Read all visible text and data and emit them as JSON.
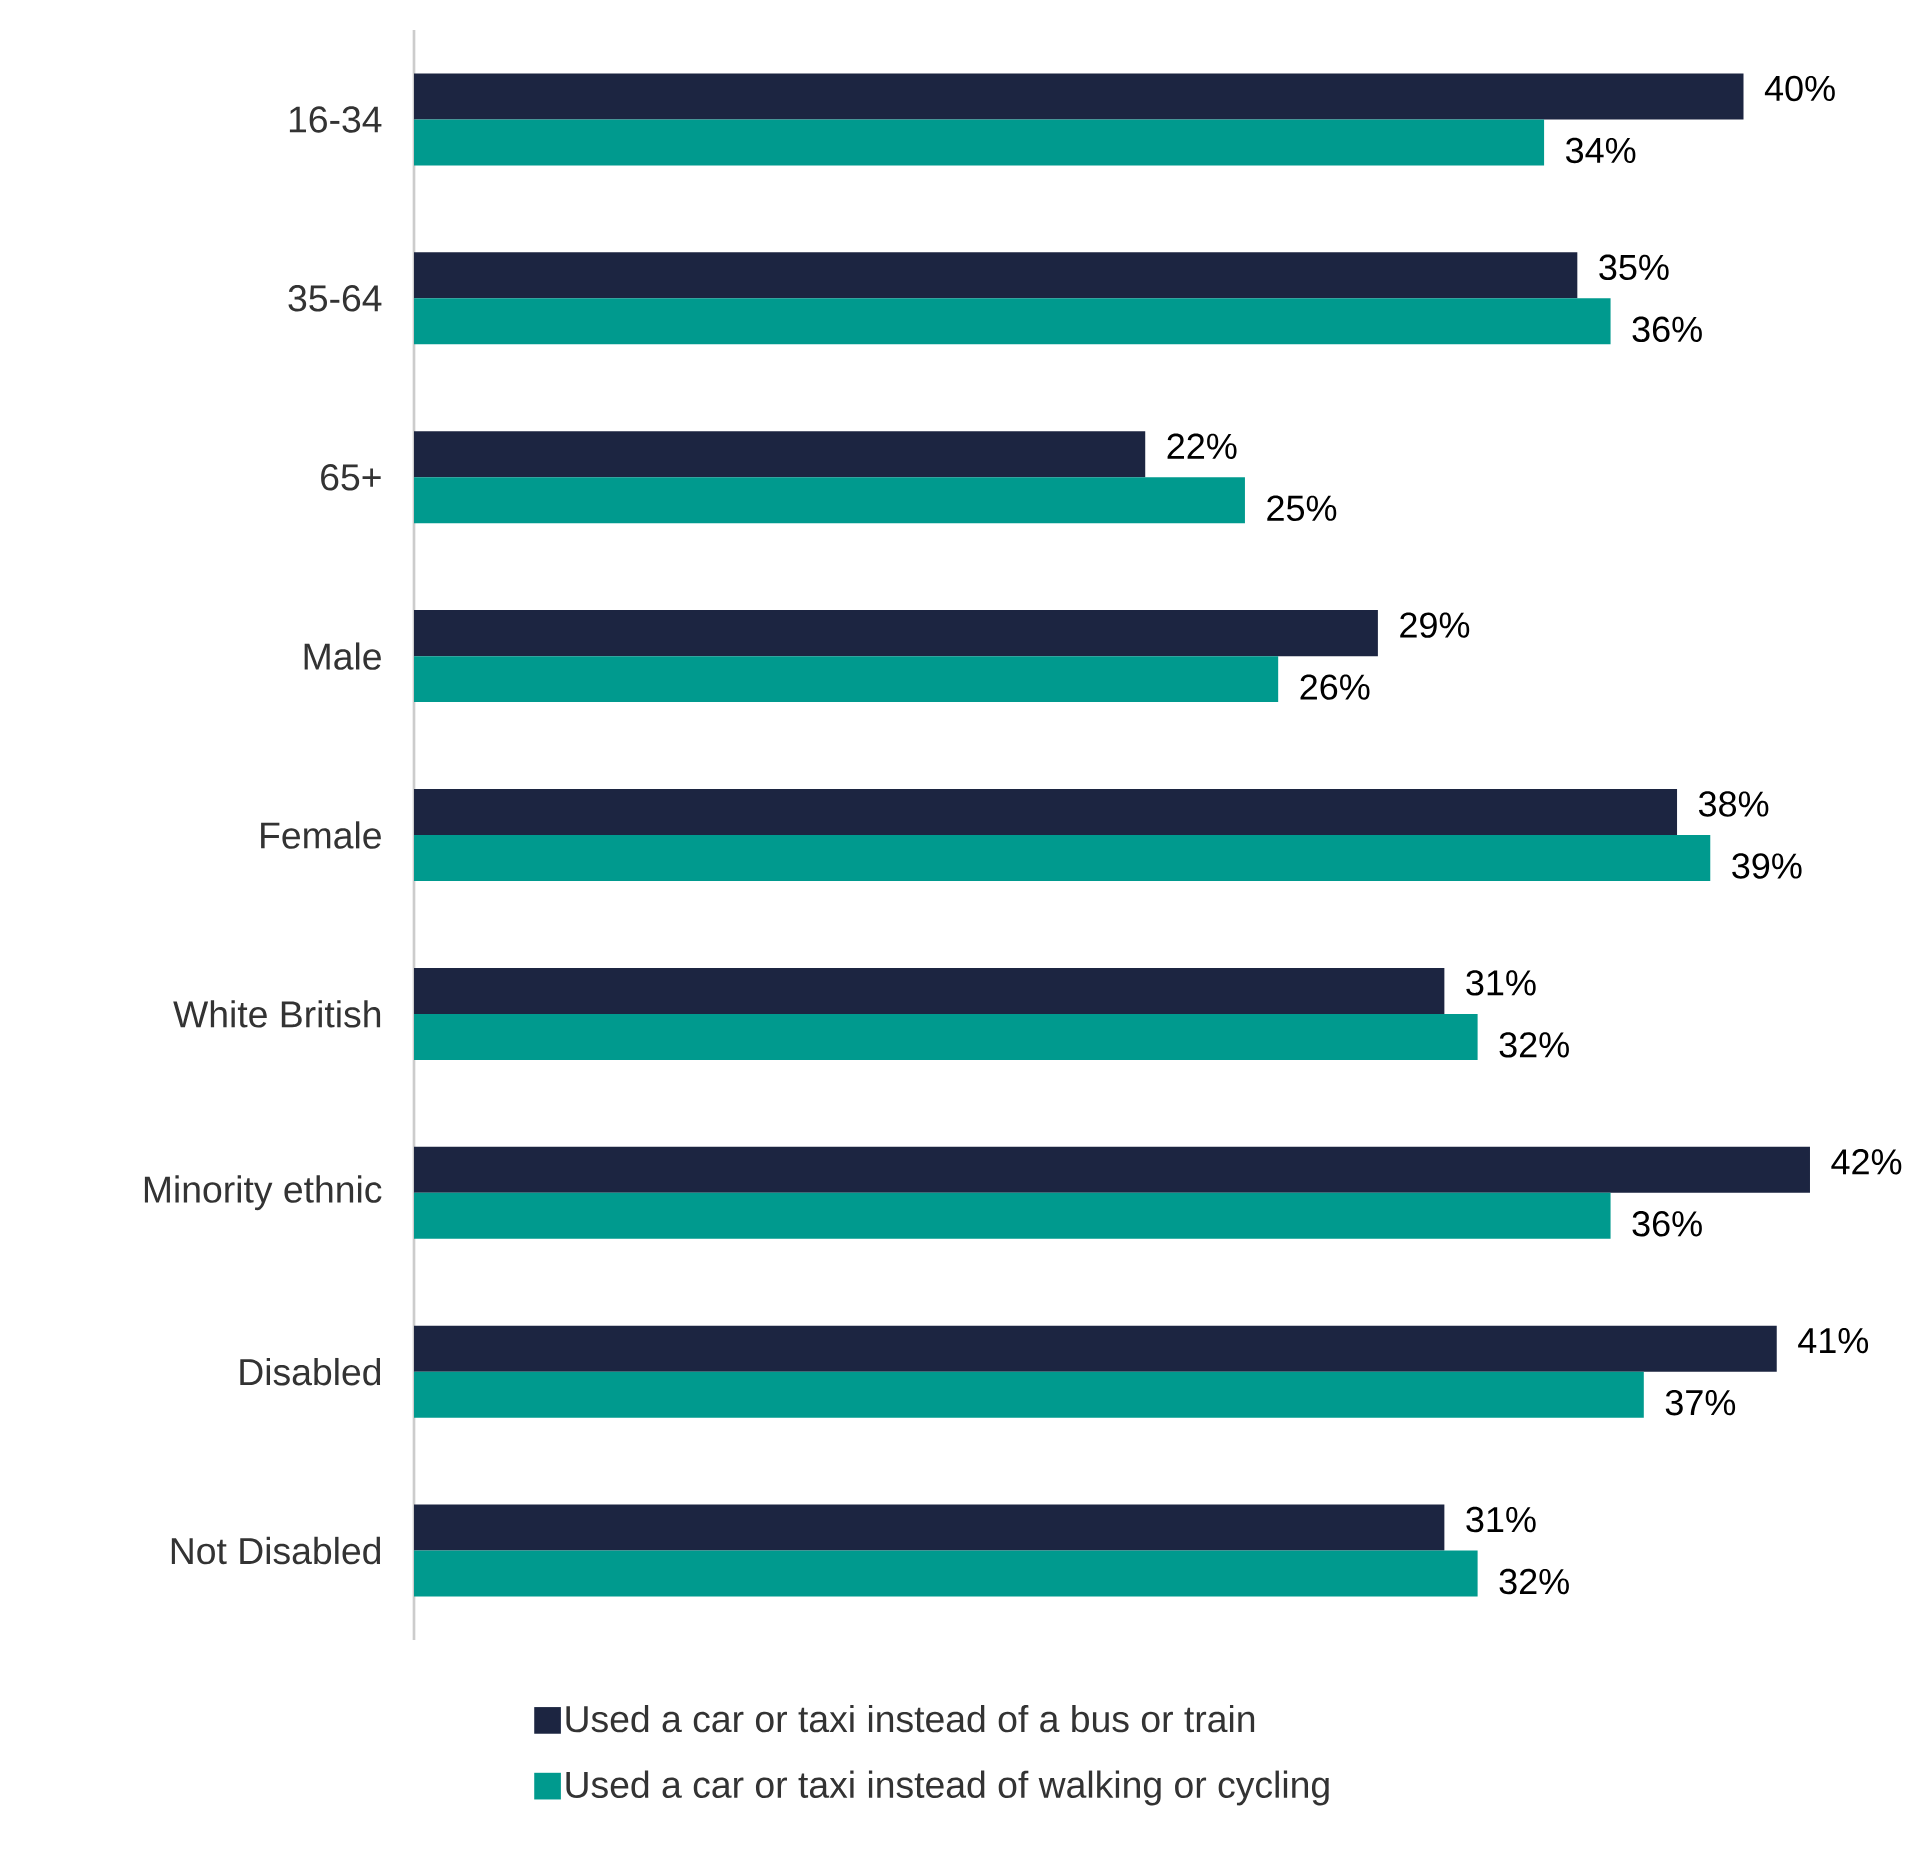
{
  "chart_data": {
    "type": "bar",
    "orientation": "horizontal",
    "categories": [
      "16-34",
      "35-64",
      "65+",
      "Male",
      "Female",
      "White British",
      "Minority ethnic",
      "Disabled",
      "Not Disabled"
    ],
    "series": [
      {
        "name": "Used a car or taxi instead of a bus or train",
        "color": "#1c2541",
        "values": [
          40,
          35,
          22,
          29,
          38,
          31,
          42,
          41,
          31
        ],
        "value_labels": [
          "40%",
          "35%",
          "22%",
          "29%",
          "38%",
          "31%",
          "42%",
          "41%",
          "31%"
        ]
      },
      {
        "name": "Used a car or taxi instead of walking or cycling",
        "color": "#009a8e",
        "values": [
          34,
          36,
          25,
          26,
          39,
          32,
          36,
          37,
          32
        ],
        "value_labels": [
          "34%",
          "36%",
          "25%",
          "26%",
          "39%",
          "32%",
          "36%",
          "37%",
          "32%"
        ]
      }
    ],
    "tick_labels": "y",
    "legend": "bottom"
  }
}
